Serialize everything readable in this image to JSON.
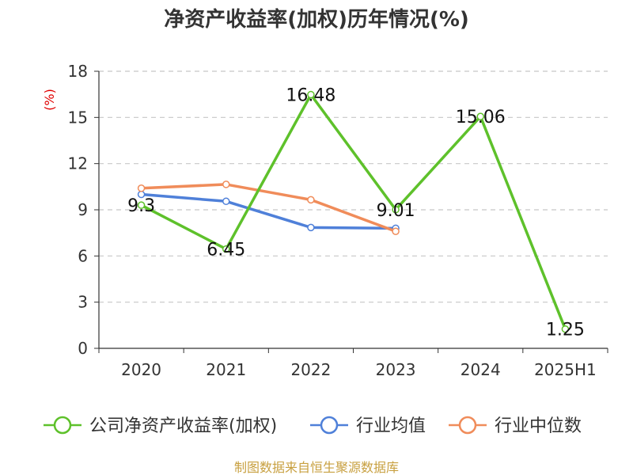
{
  "chart_data": {
    "type": "line",
    "title": "净资产收益率(加权)历年情况(%)",
    "ylabel": "(%)",
    "xlabel": "",
    "categories": [
      "2020",
      "2021",
      "2022",
      "2023",
      "2024",
      "2025H1"
    ],
    "ylim": [
      0,
      18
    ],
    "yticks": [
      0,
      3,
      6,
      9,
      12,
      15,
      18
    ],
    "grid": true,
    "legend_position": "bottom",
    "series": [
      {
        "name": "公司净资产收益率(加权)",
        "color": "#5ec12b",
        "values": [
          9.3,
          6.45,
          16.48,
          9.01,
          15.06,
          1.25
        ],
        "labels": [
          "9.3",
          "6.45",
          "16.48",
          "9.01",
          "15.06",
          "1.25"
        ]
      },
      {
        "name": "行业均值",
        "color": "#4f80d9",
        "values": [
          10.0,
          9.55,
          7.85,
          7.8,
          null,
          null
        ]
      },
      {
        "name": "行业中位数",
        "color": "#f08c5a",
        "values": [
          10.4,
          10.65,
          9.65,
          7.6,
          null,
          null
        ]
      }
    ],
    "source": "制图数据来自恒生聚源数据库"
  }
}
